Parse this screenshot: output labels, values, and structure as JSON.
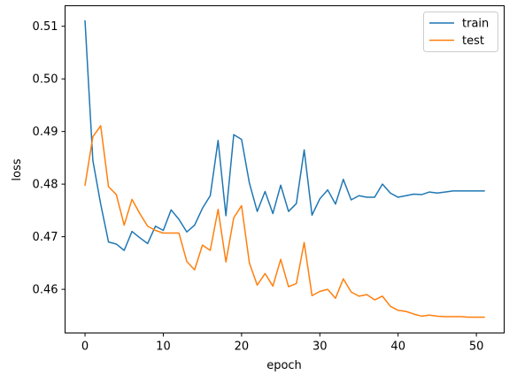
{
  "chart_data": {
    "type": "line",
    "xlabel": "epoch",
    "ylabel": "loss",
    "xlim": [
      -2.55,
      53.55
    ],
    "ylim": [
      0.4517,
      0.5139
    ],
    "xticks": [
      0,
      10,
      20,
      30,
      40,
      50
    ],
    "yticks": [
      0.46,
      0.47,
      0.48,
      0.49,
      0.5,
      0.51
    ],
    "ytick_labels": [
      "0.46",
      "0.47",
      "0.48",
      "0.49",
      "0.50",
      "0.51"
    ],
    "grid": false,
    "legend_position": "top-right",
    "x": [
      0,
      1,
      2,
      3,
      4,
      5,
      6,
      7,
      8,
      9,
      10,
      11,
      12,
      13,
      14,
      15,
      16,
      17,
      18,
      19,
      20,
      21,
      22,
      23,
      24,
      25,
      26,
      27,
      28,
      29,
      30,
      31,
      32,
      33,
      34,
      35,
      36,
      37,
      38,
      39,
      40,
      41,
      42,
      43,
      44,
      45,
      46,
      47,
      48,
      49,
      50,
      51
    ],
    "series": [
      {
        "name": "train",
        "color": "#1f77b4",
        "values": [
          0.511,
          0.4845,
          0.4762,
          0.469,
          0.4686,
          0.4674,
          0.471,
          0.4698,
          0.4687,
          0.472,
          0.4712,
          0.4751,
          0.4733,
          0.4709,
          0.4722,
          0.4754,
          0.4778,
          0.4883,
          0.474,
          0.4894,
          0.4885,
          0.4802,
          0.4748,
          0.4786,
          0.4744,
          0.4798,
          0.4748,
          0.4763,
          0.4865,
          0.4741,
          0.4772,
          0.4789,
          0.4762,
          0.4809,
          0.477,
          0.4778,
          0.4775,
          0.4775,
          0.48,
          0.4783,
          0.4775,
          0.4778,
          0.4781,
          0.478,
          0.4785,
          0.4783,
          0.4785,
          0.4787,
          0.4787,
          0.4787,
          0.4787,
          0.4787
        ]
      },
      {
        "name": "test",
        "color": "#ff7f0e",
        "values": [
          0.4798,
          0.489,
          0.4911,
          0.4795,
          0.478,
          0.4722,
          0.4771,
          0.4744,
          0.472,
          0.4712,
          0.4707,
          0.4707,
          0.4707,
          0.4653,
          0.4637,
          0.4684,
          0.4674,
          0.4752,
          0.4652,
          0.4736,
          0.4759,
          0.465,
          0.4608,
          0.463,
          0.4606,
          0.4657,
          0.4605,
          0.4611,
          0.4689,
          0.4588,
          0.4596,
          0.46,
          0.4583,
          0.462,
          0.4595,
          0.4587,
          0.459,
          0.458,
          0.4587,
          0.4568,
          0.456,
          0.4558,
          0.4553,
          0.4549,
          0.4551,
          0.4549,
          0.4548,
          0.4548,
          0.4548,
          0.4547,
          0.4547,
          0.4547
        ]
      }
    ]
  }
}
